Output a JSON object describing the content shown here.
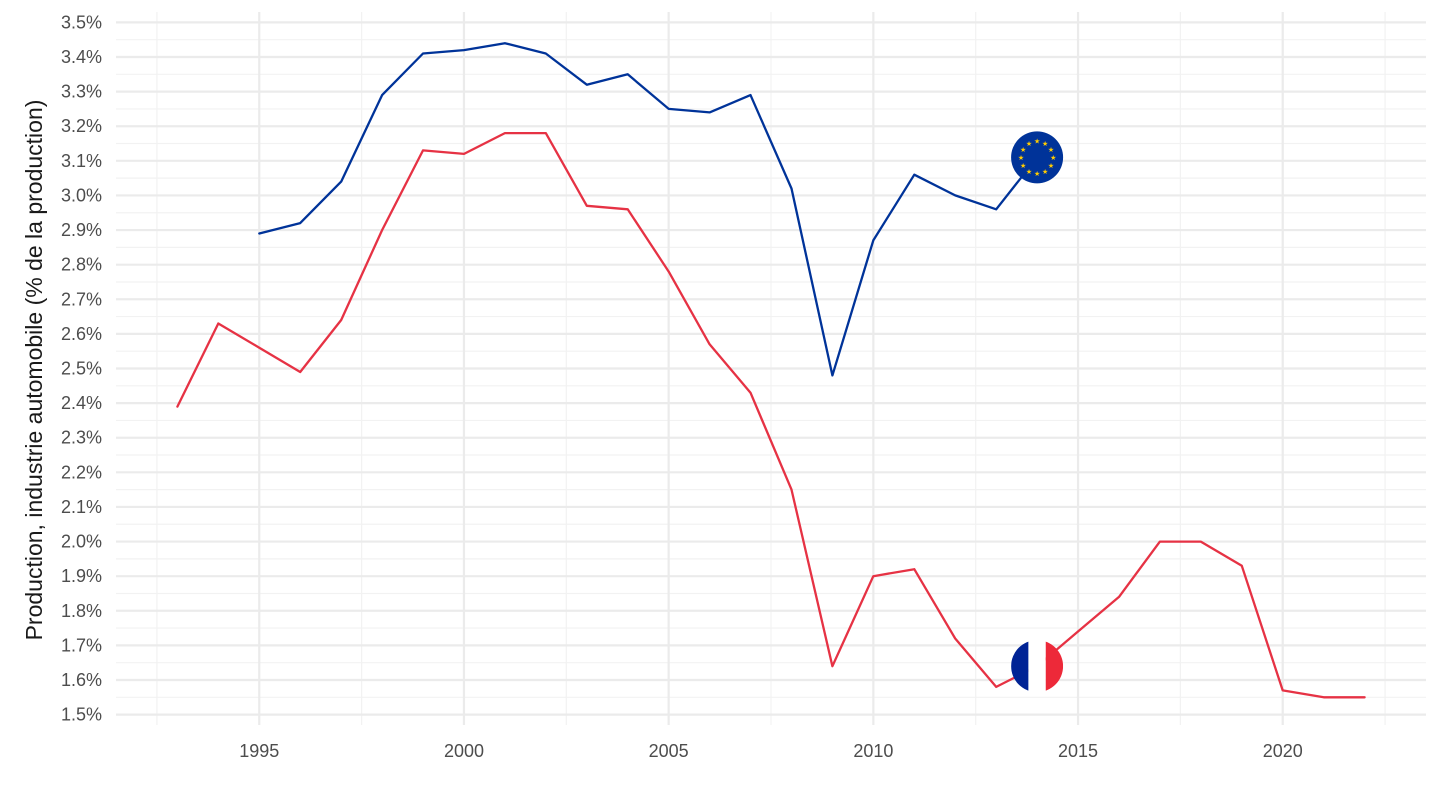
{
  "chart_data": {
    "type": "line",
    "title": "",
    "xlabel": "",
    "ylabel": "Production, industrie automobile (% de la production)",
    "xlim": [
      1991.5,
      2023.5
    ],
    "ylim": [
      1.47,
      3.53
    ],
    "x_ticks": [
      1995,
      2000,
      2005,
      2010,
      2015,
      2020
    ],
    "x_tick_labels": [
      "1995",
      "2000",
      "2005",
      "2010",
      "2015",
      "2020"
    ],
    "y_ticks": [
      1.5,
      1.6,
      1.7,
      1.8,
      1.9,
      2.0,
      2.1,
      2.2,
      2.3,
      2.4,
      2.5,
      2.6,
      2.7,
      2.8,
      2.9,
      3.0,
      3.1,
      3.2,
      3.3,
      3.4,
      3.5
    ],
    "y_tick_labels": [
      "1.5%",
      "1.6%",
      "1.7%",
      "1.8%",
      "1.9%",
      "2.0%",
      "2.1%",
      "2.2%",
      "2.3%",
      "2.4%",
      "2.5%",
      "2.6%",
      "2.7%",
      "2.8%",
      "2.9%",
      "3.0%",
      "3.1%",
      "3.2%",
      "3.3%",
      "3.4%",
      "3.5%"
    ],
    "grid": true,
    "legend": "none (flag markers at series end)",
    "series": [
      {
        "color": "#003399",
        "marker_icon": "eu-flag-icon",
        "marker_at": [
          2014,
          3.11
        ],
        "x": [
          1995,
          1996,
          1997,
          1998,
          1999,
          2000,
          2001,
          2002,
          2003,
          2004,
          2005,
          2006,
          2007,
          2008,
          2009,
          2010,
          2011,
          2012,
          2013,
          2014
        ],
        "y": [
          2.89,
          2.92,
          3.04,
          3.29,
          3.41,
          3.42,
          3.44,
          3.41,
          3.32,
          3.35,
          3.25,
          3.24,
          3.29,
          3.02,
          2.48,
          2.87,
          3.06,
          3.0,
          2.96,
          3.11
        ]
      },
      {
        "color": "#e63244",
        "marker_icon": "france-flag-icon",
        "marker_at": [
          2014,
          1.64
        ],
        "x": [
          1993,
          1994,
          1995,
          1996,
          1997,
          1998,
          1999,
          2000,
          2001,
          2002,
          2003,
          2004,
          2005,
          2006,
          2007,
          2008,
          2009,
          2010,
          2011,
          2012,
          2013,
          2014,
          2015,
          2016,
          2017,
          2018,
          2019,
          2020,
          2021,
          2022
        ],
        "y": [
          2.39,
          2.63,
          2.56,
          2.49,
          2.64,
          2.9,
          3.13,
          3.12,
          3.18,
          3.18,
          2.97,
          2.96,
          2.78,
          2.57,
          2.43,
          2.15,
          1.64,
          1.9,
          1.92,
          1.72,
          1.58,
          1.64,
          1.74,
          1.84,
          2.0,
          2.0,
          1.93,
          1.57,
          1.55,
          1.55
        ]
      }
    ]
  }
}
